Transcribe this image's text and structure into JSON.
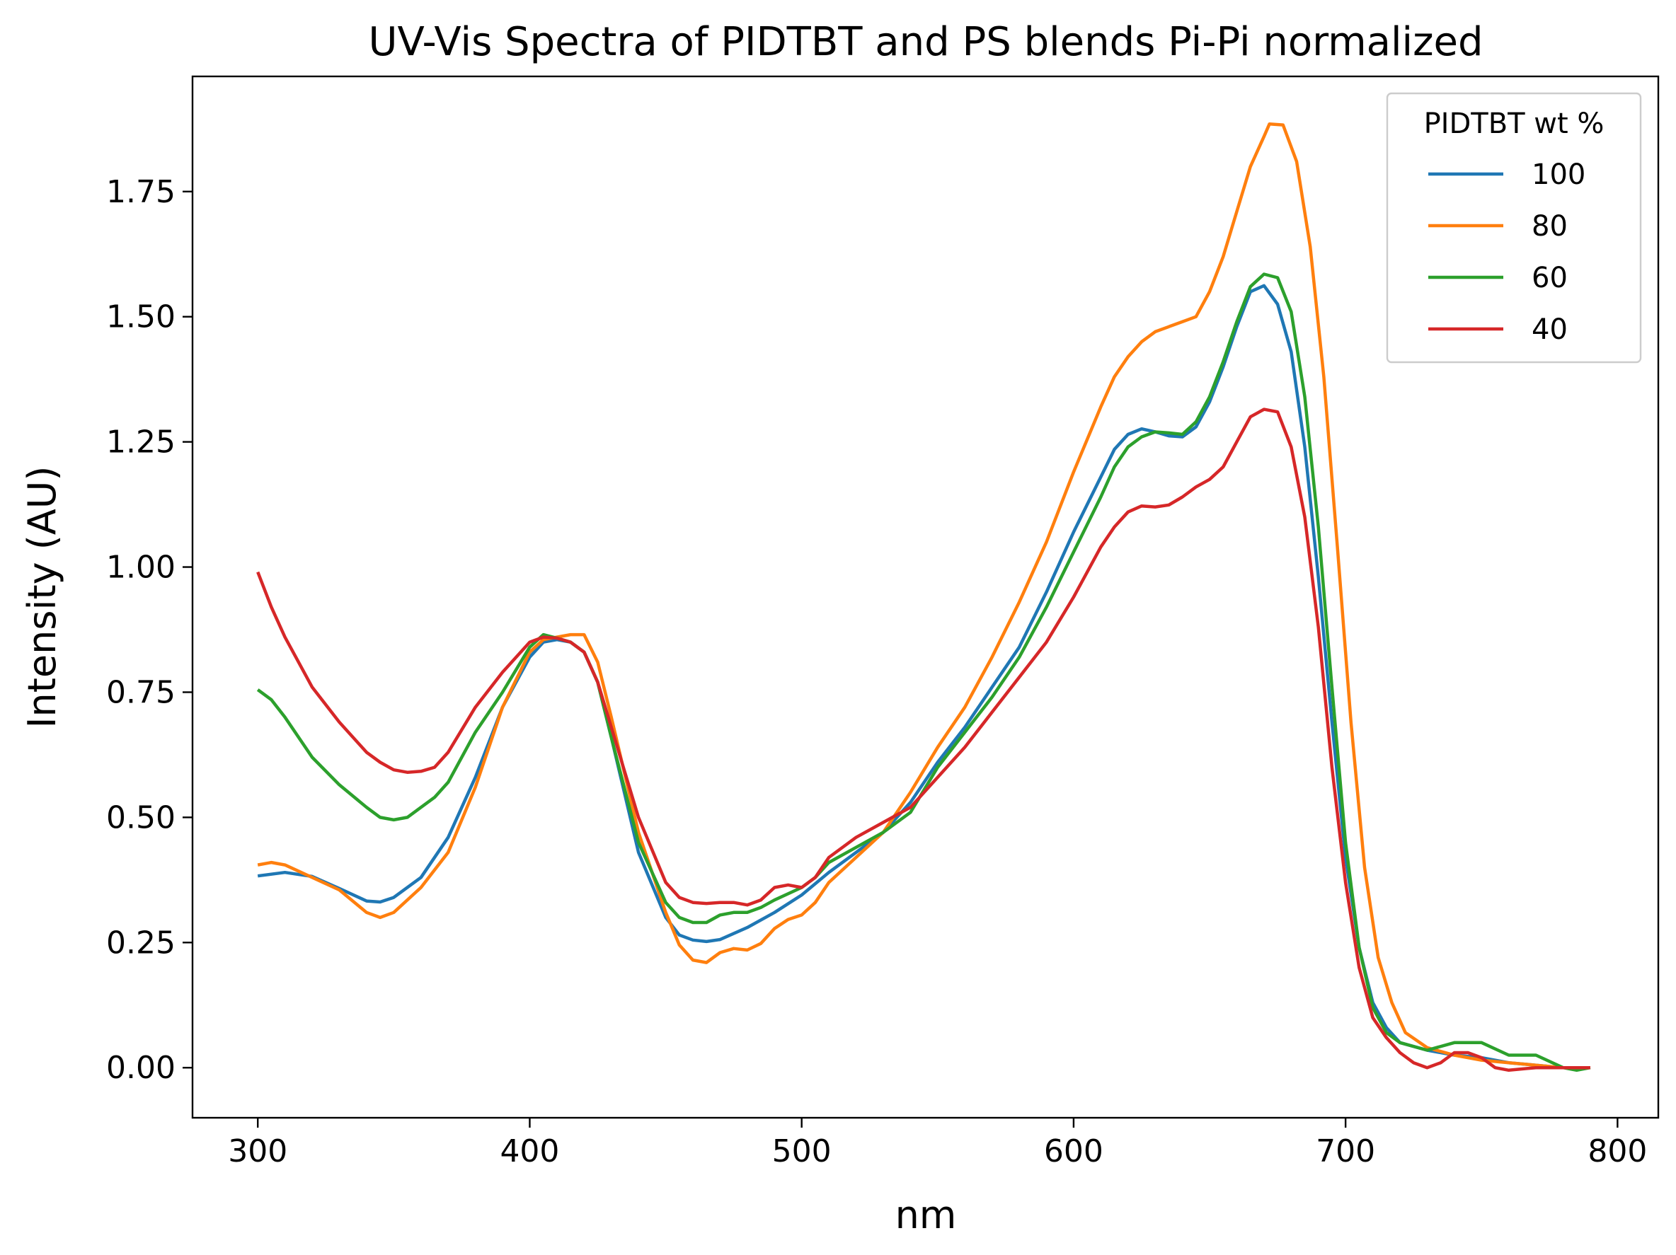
{
  "chart_data": {
    "type": "line",
    "title": "UV-Vis Spectra of PIDTBT and PS blends Pi-Pi normalized",
    "xlabel": "nm",
    "ylabel": "Intensity (AU)",
    "xlim": [
      276,
      815
    ],
    "ylim": [
      -0.1,
      1.98
    ],
    "xticks": [
      "300",
      "400",
      "500",
      "600",
      "700",
      "800"
    ],
    "yticks": [
      "0.00",
      "0.25",
      "0.50",
      "0.75",
      "1.00",
      "1.25",
      "1.50",
      "1.75"
    ],
    "grid": false,
    "legend": {
      "title": "PIDTBT wt %",
      "placement": "top-right"
    },
    "series": [
      {
        "name": "100",
        "color": "#1f77b4",
        "points": [
          [
            300,
            0.383
          ],
          [
            310,
            0.39
          ],
          [
            320,
            0.382
          ],
          [
            330,
            0.358
          ],
          [
            340,
            0.333
          ],
          [
            345,
            0.331
          ],
          [
            350,
            0.34
          ],
          [
            360,
            0.38
          ],
          [
            370,
            0.46
          ],
          [
            380,
            0.58
          ],
          [
            390,
            0.72
          ],
          [
            400,
            0.82
          ],
          [
            405,
            0.85
          ],
          [
            410,
            0.855
          ],
          [
            415,
            0.85
          ],
          [
            420,
            0.83
          ],
          [
            425,
            0.77
          ],
          [
            430,
            0.66
          ],
          [
            440,
            0.43
          ],
          [
            450,
            0.3
          ],
          [
            455,
            0.265
          ],
          [
            460,
            0.255
          ],
          [
            465,
            0.252
          ],
          [
            470,
            0.256
          ],
          [
            480,
            0.28
          ],
          [
            490,
            0.31
          ],
          [
            500,
            0.345
          ],
          [
            510,
            0.39
          ],
          [
            520,
            0.43
          ],
          [
            530,
            0.47
          ],
          [
            540,
            0.53
          ],
          [
            550,
            0.61
          ],
          [
            560,
            0.68
          ],
          [
            570,
            0.76
          ],
          [
            580,
            0.84
          ],
          [
            590,
            0.95
          ],
          [
            600,
            1.07
          ],
          [
            610,
            1.18
          ],
          [
            615,
            1.235
          ],
          [
            620,
            1.265
          ],
          [
            625,
            1.276
          ],
          [
            630,
            1.27
          ],
          [
            635,
            1.262
          ],
          [
            640,
            1.26
          ],
          [
            645,
            1.28
          ],
          [
            650,
            1.33
          ],
          [
            655,
            1.4
          ],
          [
            660,
            1.48
          ],
          [
            665,
            1.55
          ],
          [
            670,
            1.562
          ],
          [
            675,
            1.525
          ],
          [
            680,
            1.43
          ],
          [
            685,
            1.24
          ],
          [
            690,
            0.98
          ],
          [
            695,
            0.69
          ],
          [
            700,
            0.42
          ],
          [
            705,
            0.24
          ],
          [
            710,
            0.13
          ],
          [
            715,
            0.08
          ],
          [
            720,
            0.05
          ],
          [
            730,
            0.035
          ],
          [
            740,
            0.025
          ],
          [
            750,
            0.02
          ],
          [
            760,
            0.01
          ],
          [
            770,
            0.005
          ],
          [
            780,
            0.0
          ],
          [
            790,
            0.0
          ]
        ]
      },
      {
        "name": "80",
        "color": "#ff7f0e",
        "points": [
          [
            300,
            0.405
          ],
          [
            305,
            0.41
          ],
          [
            310,
            0.405
          ],
          [
            320,
            0.38
          ],
          [
            330,
            0.355
          ],
          [
            340,
            0.31
          ],
          [
            345,
            0.3
          ],
          [
            350,
            0.31
          ],
          [
            360,
            0.36
          ],
          [
            370,
            0.43
          ],
          [
            380,
            0.56
          ],
          [
            390,
            0.72
          ],
          [
            400,
            0.83
          ],
          [
            405,
            0.855
          ],
          [
            410,
            0.86
          ],
          [
            415,
            0.865
          ],
          [
            420,
            0.865
          ],
          [
            425,
            0.81
          ],
          [
            430,
            0.7
          ],
          [
            440,
            0.47
          ],
          [
            450,
            0.31
          ],
          [
            455,
            0.245
          ],
          [
            460,
            0.215
          ],
          [
            465,
            0.21
          ],
          [
            470,
            0.23
          ],
          [
            475,
            0.238
          ],
          [
            480,
            0.235
          ],
          [
            485,
            0.248
          ],
          [
            490,
            0.278
          ],
          [
            495,
            0.296
          ],
          [
            500,
            0.305
          ],
          [
            505,
            0.33
          ],
          [
            510,
            0.37
          ],
          [
            520,
            0.42
          ],
          [
            530,
            0.47
          ],
          [
            540,
            0.55
          ],
          [
            550,
            0.64
          ],
          [
            560,
            0.72
          ],
          [
            570,
            0.82
          ],
          [
            580,
            0.93
          ],
          [
            590,
            1.05
          ],
          [
            600,
            1.19
          ],
          [
            610,
            1.32
          ],
          [
            615,
            1.38
          ],
          [
            620,
            1.42
          ],
          [
            625,
            1.45
          ],
          [
            630,
            1.47
          ],
          [
            635,
            1.48
          ],
          [
            640,
            1.49
          ],
          [
            645,
            1.5
          ],
          [
            650,
            1.55
          ],
          [
            655,
            1.62
          ],
          [
            660,
            1.71
          ],
          [
            665,
            1.8
          ],
          [
            670,
            1.86
          ],
          [
            672,
            1.885
          ],
          [
            677,
            1.883
          ],
          [
            682,
            1.81
          ],
          [
            687,
            1.64
          ],
          [
            692,
            1.38
          ],
          [
            697,
            1.04
          ],
          [
            702,
            0.69
          ],
          [
            707,
            0.4
          ],
          [
            712,
            0.22
          ],
          [
            717,
            0.13
          ],
          [
            722,
            0.07
          ],
          [
            730,
            0.04
          ],
          [
            740,
            0.025
          ],
          [
            750,
            0.015
          ],
          [
            760,
            0.01
          ],
          [
            770,
            0.005
          ],
          [
            780,
            0.0
          ],
          [
            790,
            0.0
          ]
        ]
      },
      {
        "name": "60",
        "color": "#2ca02c",
        "points": [
          [
            300,
            0.755
          ],
          [
            305,
            0.735
          ],
          [
            310,
            0.7
          ],
          [
            320,
            0.62
          ],
          [
            330,
            0.565
          ],
          [
            340,
            0.52
          ],
          [
            345,
            0.5
          ],
          [
            350,
            0.495
          ],
          [
            355,
            0.5
          ],
          [
            360,
            0.52
          ],
          [
            365,
            0.54
          ],
          [
            370,
            0.57
          ],
          [
            380,
            0.67
          ],
          [
            390,
            0.75
          ],
          [
            400,
            0.84
          ],
          [
            405,
            0.865
          ],
          [
            410,
            0.858
          ],
          [
            415,
            0.85
          ],
          [
            420,
            0.83
          ],
          [
            425,
            0.77
          ],
          [
            430,
            0.66
          ],
          [
            440,
            0.45
          ],
          [
            450,
            0.33
          ],
          [
            455,
            0.3
          ],
          [
            460,
            0.29
          ],
          [
            465,
            0.29
          ],
          [
            470,
            0.305
          ],
          [
            475,
            0.31
          ],
          [
            480,
            0.31
          ],
          [
            485,
            0.32
          ],
          [
            490,
            0.335
          ],
          [
            500,
            0.36
          ],
          [
            505,
            0.38
          ],
          [
            510,
            0.41
          ],
          [
            520,
            0.44
          ],
          [
            530,
            0.47
          ],
          [
            540,
            0.51
          ],
          [
            550,
            0.6
          ],
          [
            560,
            0.67
          ],
          [
            570,
            0.74
          ],
          [
            580,
            0.82
          ],
          [
            590,
            0.92
          ],
          [
            600,
            1.03
          ],
          [
            610,
            1.14
          ],
          [
            615,
            1.2
          ],
          [
            620,
            1.24
          ],
          [
            625,
            1.26
          ],
          [
            630,
            1.27
          ],
          [
            635,
            1.268
          ],
          [
            640,
            1.265
          ],
          [
            645,
            1.29
          ],
          [
            650,
            1.34
          ],
          [
            655,
            1.41
          ],
          [
            660,
            1.49
          ],
          [
            665,
            1.56
          ],
          [
            670,
            1.585
          ],
          [
            675,
            1.578
          ],
          [
            680,
            1.51
          ],
          [
            685,
            1.34
          ],
          [
            690,
            1.08
          ],
          [
            695,
            0.76
          ],
          [
            700,
            0.45
          ],
          [
            705,
            0.24
          ],
          [
            710,
            0.12
          ],
          [
            715,
            0.07
          ],
          [
            720,
            0.05
          ],
          [
            730,
            0.035
          ],
          [
            740,
            0.05
          ],
          [
            750,
            0.05
          ],
          [
            760,
            0.025
          ],
          [
            770,
            0.025
          ],
          [
            780,
            0.0
          ],
          [
            785,
            -0.005
          ],
          [
            790,
            0.0
          ]
        ]
      },
      {
        "name": "40",
        "color": "#d62728",
        "points": [
          [
            300,
            0.99
          ],
          [
            305,
            0.92
          ],
          [
            310,
            0.86
          ],
          [
            320,
            0.76
          ],
          [
            330,
            0.69
          ],
          [
            340,
            0.63
          ],
          [
            345,
            0.61
          ],
          [
            350,
            0.595
          ],
          [
            355,
            0.59
          ],
          [
            360,
            0.592
          ],
          [
            365,
            0.6
          ],
          [
            370,
            0.63
          ],
          [
            380,
            0.72
          ],
          [
            390,
            0.79
          ],
          [
            400,
            0.85
          ],
          [
            405,
            0.86
          ],
          [
            410,
            0.858
          ],
          [
            415,
            0.85
          ],
          [
            420,
            0.83
          ],
          [
            425,
            0.77
          ],
          [
            430,
            0.68
          ],
          [
            440,
            0.5
          ],
          [
            450,
            0.37
          ],
          [
            455,
            0.34
          ],
          [
            460,
            0.33
          ],
          [
            465,
            0.328
          ],
          [
            470,
            0.33
          ],
          [
            475,
            0.33
          ],
          [
            480,
            0.325
          ],
          [
            485,
            0.335
          ],
          [
            490,
            0.36
          ],
          [
            495,
            0.365
          ],
          [
            500,
            0.36
          ],
          [
            505,
            0.38
          ],
          [
            510,
            0.42
          ],
          [
            520,
            0.46
          ],
          [
            530,
            0.49
          ],
          [
            540,
            0.52
          ],
          [
            550,
            0.58
          ],
          [
            560,
            0.64
          ],
          [
            570,
            0.71
          ],
          [
            580,
            0.78
          ],
          [
            590,
            0.85
          ],
          [
            600,
            0.94
          ],
          [
            610,
            1.04
          ],
          [
            615,
            1.08
          ],
          [
            620,
            1.11
          ],
          [
            625,
            1.122
          ],
          [
            630,
            1.12
          ],
          [
            635,
            1.124
          ],
          [
            640,
            1.14
          ],
          [
            645,
            1.16
          ],
          [
            650,
            1.175
          ],
          [
            655,
            1.2
          ],
          [
            660,
            1.25
          ],
          [
            665,
            1.3
          ],
          [
            670,
            1.315
          ],
          [
            675,
            1.31
          ],
          [
            680,
            1.24
          ],
          [
            685,
            1.1
          ],
          [
            690,
            0.88
          ],
          [
            695,
            0.6
          ],
          [
            700,
            0.37
          ],
          [
            705,
            0.2
          ],
          [
            710,
            0.1
          ],
          [
            715,
            0.06
          ],
          [
            720,
            0.03
          ],
          [
            725,
            0.01
          ],
          [
            730,
            0.0
          ],
          [
            735,
            0.01
          ],
          [
            740,
            0.03
          ],
          [
            745,
            0.03
          ],
          [
            750,
            0.02
          ],
          [
            755,
            0.0
          ],
          [
            760,
            -0.005
          ],
          [
            770,
            0.0
          ],
          [
            780,
            0.0
          ],
          [
            790,
            0.0
          ]
        ]
      }
    ]
  }
}
